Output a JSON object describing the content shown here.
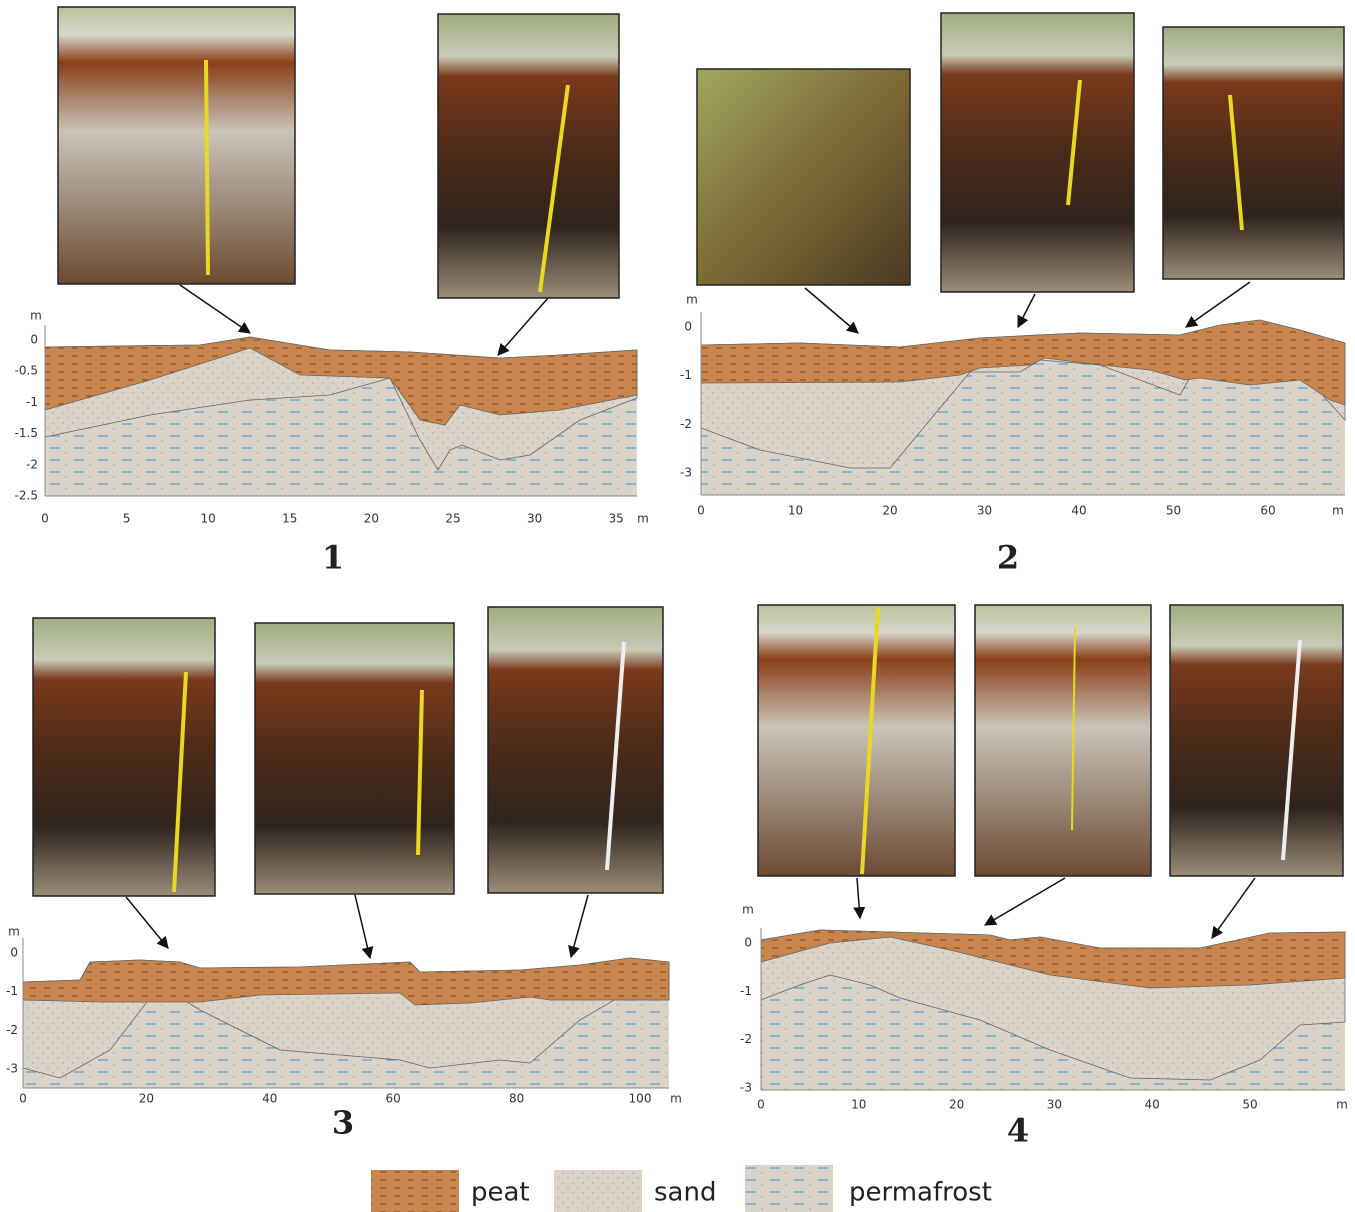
{
  "panels": [
    {
      "number": "1",
      "unit_y": "m",
      "unit_x": "m",
      "yticks": [
        "0",
        "-0.5",
        "-1",
        "-1.5",
        "-2",
        "-2.5"
      ],
      "xticks": [
        "0",
        "5",
        "10",
        "15",
        "20",
        "25",
        "30",
        "35"
      ]
    },
    {
      "number": "2",
      "unit_y": "m",
      "unit_x": "m",
      "yticks": [
        "0",
        "-1",
        "-2",
        "-3"
      ],
      "xticks": [
        "0",
        "10",
        "20",
        "30",
        "40",
        "50",
        "60"
      ]
    },
    {
      "number": "3",
      "unit_y": "m",
      "unit_x": "m",
      "yticks": [
        "0",
        "-1",
        "-2",
        "-3"
      ],
      "xticks": [
        "0",
        "20",
        "40",
        "60",
        "80",
        "100"
      ]
    },
    {
      "number": "4",
      "unit_y": "m",
      "unit_x": "m",
      "yticks": [
        "0",
        "-1",
        "-2",
        "-3"
      ],
      "xticks": [
        "0",
        "10",
        "20",
        "30",
        "40",
        "50"
      ]
    }
  ],
  "legend": [
    "peat",
    "sand",
    "permafrost"
  ]
}
